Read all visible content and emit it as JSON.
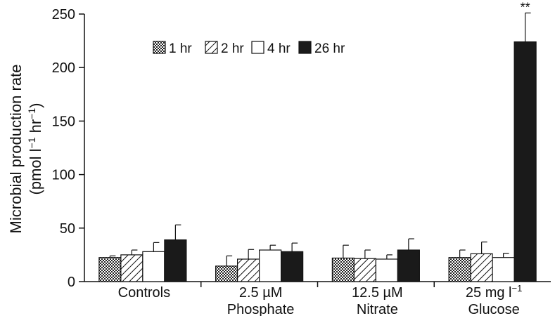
{
  "chart_data": {
    "type": "bar",
    "title": "",
    "ylabel_line1": "Microbial production rate",
    "ylabel_line2_prefix": "(pmol l",
    "ylabel_line2_mid": " hr",
    "ylabel_line2_suffix": ")",
    "ylabel_sup": "−1",
    "ylim": [
      0,
      250
    ],
    "yticks": [
      0,
      50,
      100,
      150,
      200,
      250
    ],
    "categories": [
      {
        "line1": "Controls",
        "line2": ""
      },
      {
        "line1": "2.5 µM",
        "line2": "Phosphate"
      },
      {
        "line1": "12.5 µM",
        "line2": "Nitrate"
      },
      {
        "line1": "25 mg l",
        "line1_sup": "−1",
        "line2": "Glucose"
      }
    ],
    "series": [
      {
        "name": "1 hr",
        "pattern": "dots",
        "values": [
          22.5,
          14.5,
          22,
          22.5
        ],
        "errors": [
          1.5,
          9.5,
          12,
          7
        ]
      },
      {
        "name": "2 hr",
        "pattern": "hatch",
        "values": [
          25,
          21,
          21.5,
          26
        ],
        "errors": [
          4.5,
          9,
          8,
          11
        ]
      },
      {
        "name": "4 hr",
        "pattern": "white",
        "values": [
          28,
          29.5,
          21,
          22.5
        ],
        "errors": [
          8.5,
          4.5,
          4,
          4
        ]
      },
      {
        "name": "26 hr",
        "pattern": "black",
        "values": [
          39,
          28,
          29.5,
          224
        ],
        "errors": [
          14,
          8,
          10.5,
          27
        ]
      }
    ],
    "annotations": [
      {
        "text": "**",
        "category": 3,
        "series": 3
      }
    ],
    "legend": "top-left",
    "grid": false
  }
}
